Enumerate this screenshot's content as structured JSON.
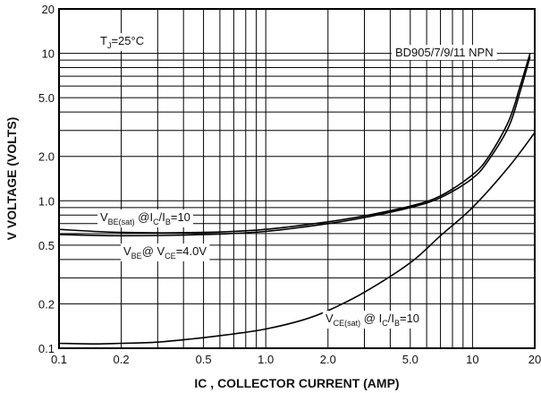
{
  "chart_data": {
    "type": "line",
    "title": "",
    "xlabel": "IC , COLLECTOR CURRENT (AMP)",
    "ylabel": "V VOLTAGE (VOLTS)",
    "xscale": "log",
    "yscale": "log",
    "xlim": [
      0.1,
      20
    ],
    "ylim": [
      0.1,
      20
    ],
    "grid": true,
    "x_ticks": [
      0.1,
      0.2,
      0.5,
      1.0,
      2.0,
      5.0,
      10,
      20
    ],
    "x_tick_labels": [
      "0.1",
      "0.2",
      "0.5",
      "1.0",
      "2.0",
      "5.0",
      "10",
      "20"
    ],
    "y_ticks": [
      0.1,
      0.2,
      0.5,
      1.0,
      2.0,
      5.0,
      10,
      20
    ],
    "y_tick_labels": [
      "0.1",
      "0.2",
      "0.5",
      "1.0",
      "2.0",
      "5.0",
      "10",
      "20"
    ],
    "annotations": {
      "temperature_main": "T",
      "temperature_sub": "J",
      "temperature_value": "=25",
      "temperature_unit": "°C",
      "device": "BD905/7/9/11 NPN",
      "vbe_sat": {
        "a": "V",
        "b": "BE(sat)",
        "c": " @I",
        "d": "C",
        "e": "/I",
        "f": "B",
        "g": "=10"
      },
      "vbe": {
        "a": "V",
        "b": "BE",
        "c": "@ V",
        "d": "CE",
        "e": "=4.0V"
      },
      "vce_sat": {
        "a": "V",
        "b": "CE(sat)",
        "c": " @ I",
        "d": "C",
        "e": "/I",
        "f": "B",
        "g": "=10"
      }
    },
    "series": [
      {
        "id": "vbe_sat",
        "x": [
          0.1,
          0.2,
          0.5,
          1.0,
          2.0,
          3.0,
          5.0,
          7.0,
          10.0,
          12.0,
          15.0,
          17.0,
          19.0
        ],
        "y": [
          0.64,
          0.61,
          0.61,
          0.64,
          0.72,
          0.79,
          0.92,
          1.08,
          1.5,
          2.0,
          3.5,
          6.0,
          10.0
        ]
      },
      {
        "id": "vbe",
        "x": [
          0.1,
          0.2,
          0.5,
          1.0,
          2.0,
          3.0,
          5.0,
          7.0,
          10.0,
          12.0,
          15.0,
          17.0,
          19.0
        ],
        "y": [
          0.59,
          0.58,
          0.59,
          0.62,
          0.7,
          0.77,
          0.9,
          1.05,
          1.42,
          1.9,
          3.2,
          5.5,
          9.5
        ]
      },
      {
        "id": "vce_sat",
        "x": [
          0.1,
          0.15,
          0.2,
          0.3,
          0.5,
          0.7,
          1.0,
          1.5,
          2.0,
          3.0,
          5.0,
          7.0,
          10.0,
          15.0,
          20.0
        ],
        "y": [
          0.108,
          0.107,
          0.108,
          0.11,
          0.118,
          0.125,
          0.135,
          0.155,
          0.18,
          0.24,
          0.38,
          0.58,
          0.9,
          1.7,
          2.9
        ]
      }
    ]
  }
}
